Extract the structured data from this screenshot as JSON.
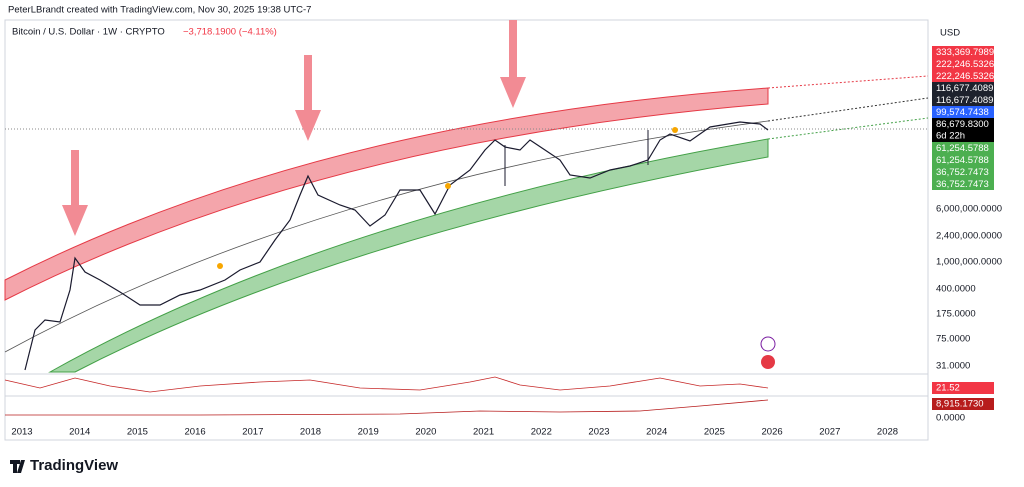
{
  "header": {
    "attribution": "PeterLBrandt created with TradingView.com, Nov 30, 2025 19:38 UTC-7"
  },
  "legend": {
    "symbol": "Bitcoin / U.S. Dollar · 1W · CRYPTO",
    "change": "−3,718.1900 (−4.11%)"
  },
  "price_scale": {
    "currency": "USD",
    "labels": [
      "333,369.7989",
      "222,246.5326",
      "222,246.5326",
      "116,677.4089",
      "116,677.4089",
      "99,574.7438",
      "86,679.8300",
      "61,254.5788",
      "61,254.5788",
      "36,752.7473",
      "36,752.7473"
    ],
    "countdown": "6d 22h",
    "ticks": [
      "6,000,000.0000",
      "2,400,000.0000",
      "1,000,000.0000",
      "400.0000",
      "175.0000",
      "75.0000",
      "31.0000"
    ]
  },
  "indicators": {
    "labels": [
      "21.52",
      "8,915.1730",
      "0.0000"
    ]
  },
  "time_axis": {
    "years": [
      "2013",
      "2014",
      "2015",
      "2016",
      "2017",
      "2018",
      "2019",
      "2020",
      "2021",
      "2022",
      "2023",
      "2024",
      "2025",
      "2026",
      "2027",
      "2028"
    ]
  },
  "footer": {
    "brand": "TradingView"
  }
}
